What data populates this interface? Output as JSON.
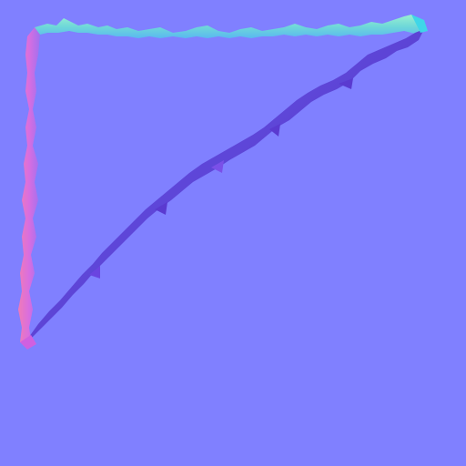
{
  "texture": {
    "kind": "normal-map",
    "colors": {
      "base": "#8080ff",
      "edge_top": "#7fe3c9",
      "edge_top_alt": "#5cc8f0",
      "edge_left": "#e06ad6",
      "edge_left_alt": "#f07ab8",
      "edge_diag": "#5a40d8",
      "edge_diag_alt": "#b050e0",
      "corner_highlight": "#3fd6e8"
    },
    "shape": "torn-edged triangle outline"
  }
}
